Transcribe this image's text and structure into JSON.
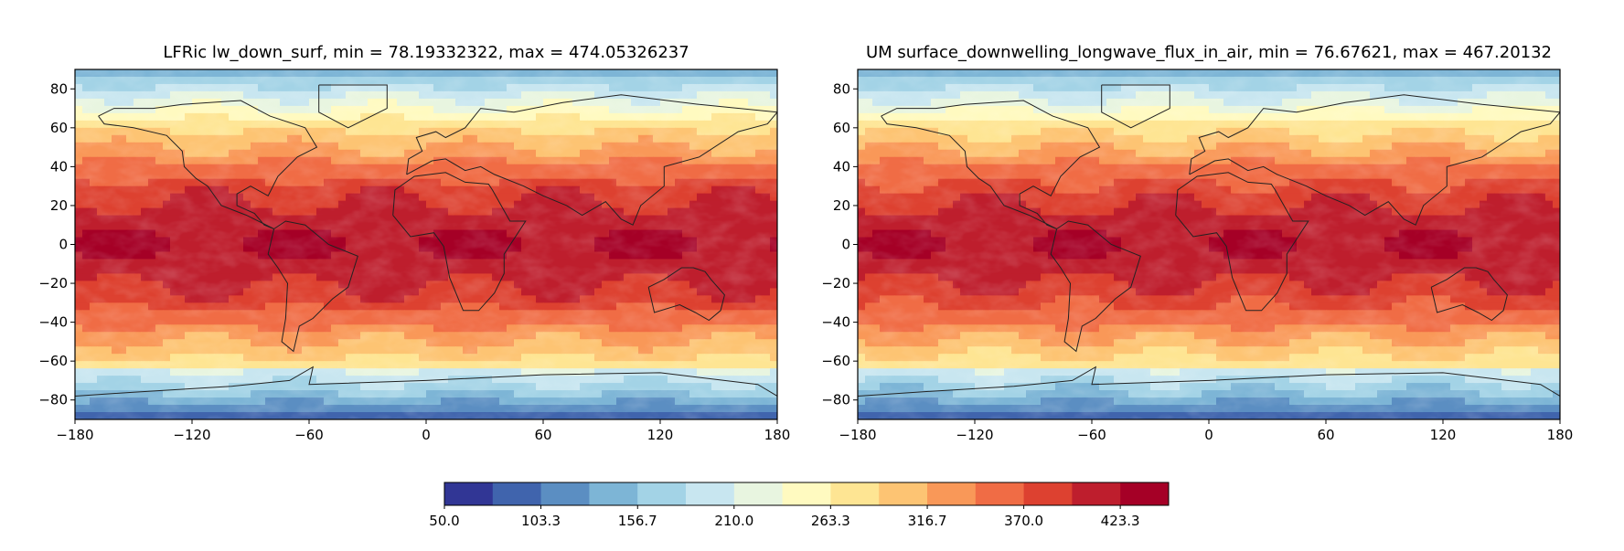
{
  "chart_data": [
    {
      "type": "heatmap",
      "title": "LFRic lw_down_surf, min = 78.19332322, max = 474.05326237",
      "xlim": [
        -180,
        180
      ],
      "ylim": [
        -90,
        90
      ],
      "xticks": [
        "−180",
        "−120",
        "−60",
        "0",
        "60",
        "120",
        "180"
      ],
      "yticks": [
        "80",
        "60",
        "40",
        "20",
        "0",
        "−20",
        "−40",
        "−60",
        "−80"
      ],
      "grid": false,
      "min": 78.19332322,
      "max": 474.05326237
    },
    {
      "type": "heatmap",
      "title": "UM surface_downwelling_longwave_flux_in_air, min = 76.67621, max = 467.20132",
      "xlim": [
        -180,
        180
      ],
      "ylim": [
        -90,
        90
      ],
      "xticks": [
        "−180",
        "−120",
        "−60",
        "0",
        "60",
        "120",
        "180"
      ],
      "yticks": [
        "80",
        "60",
        "40",
        "20",
        "0",
        "−20",
        "−40",
        "−60",
        "−80"
      ],
      "grid": false,
      "min": 76.67621,
      "max": 467.20132
    }
  ],
  "colorbar": {
    "range": [
      50,
      450
    ],
    "tick_values": [
      50,
      103.3,
      156.7,
      210,
      263.3,
      316.7,
      370,
      423.3
    ],
    "tick_labels": [
      "50.0",
      "103.3",
      "156.7",
      "210.0",
      "263.3",
      "316.7",
      "370.0",
      "423.3"
    ],
    "colors": [
      "#313695",
      "#4064ad",
      "#5b8ec2",
      "#7db5d6",
      "#a3d3e6",
      "#c8e6f0",
      "#e8f5e0",
      "#fffac0",
      "#fee593",
      "#fdc473",
      "#f99858",
      "#f06c45",
      "#dd4130",
      "#be1e2d",
      "#a50026"
    ]
  }
}
